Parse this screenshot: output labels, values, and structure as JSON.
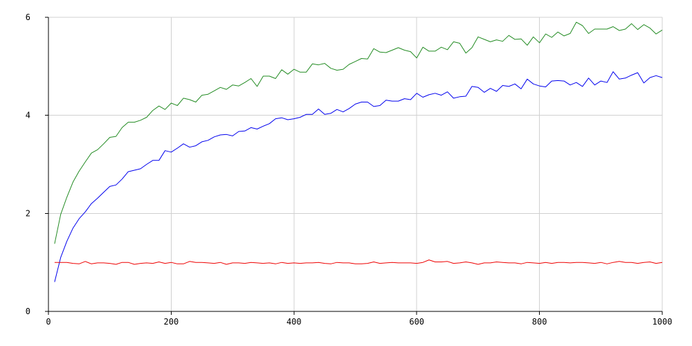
{
  "chart_data": {
    "type": "line",
    "title": "",
    "xlabel": "",
    "ylabel": "",
    "xlim": [
      0,
      1000
    ],
    "ylim": [
      0,
      6
    ],
    "x_ticks": [
      0,
      200,
      400,
      600,
      800,
      1000
    ],
    "y_ticks": [
      0,
      2,
      4,
      6
    ],
    "grid": true,
    "legend": "none",
    "x": [
      10,
      20,
      30,
      40,
      50,
      60,
      70,
      80,
      90,
      100,
      110,
      120,
      130,
      140,
      150,
      160,
      170,
      180,
      190,
      200,
      210,
      220,
      230,
      240,
      250,
      260,
      270,
      280,
      290,
      300,
      310,
      320,
      330,
      340,
      350,
      360,
      370,
      380,
      390,
      400,
      410,
      420,
      430,
      440,
      450,
      460,
      470,
      480,
      490,
      500,
      510,
      520,
      530,
      540,
      550,
      560,
      570,
      580,
      590,
      600,
      610,
      620,
      630,
      640,
      650,
      660,
      670,
      680,
      690,
      700,
      710,
      720,
      730,
      740,
      750,
      760,
      770,
      780,
      790,
      800,
      810,
      820,
      830,
      840,
      850,
      860,
      870,
      880,
      890,
      900,
      910,
      920,
      930,
      940,
      950,
      960,
      970,
      980,
      990,
      1000
    ],
    "series": [
      {
        "color": "#228b22",
        "values": [
          1.38,
          1.98,
          2.33,
          2.64,
          2.86,
          3.05,
          3.23,
          3.3,
          3.42,
          3.55,
          3.57,
          3.75,
          3.86,
          3.86,
          3.9,
          3.96,
          4.1,
          4.19,
          4.12,
          4.25,
          4.2,
          4.35,
          4.32,
          4.27,
          4.41,
          4.43,
          4.5,
          4.57,
          4.53,
          4.62,
          4.6,
          4.67,
          4.75,
          4.59,
          4.8,
          4.8,
          4.75,
          4.93,
          4.84,
          4.94,
          4.88,
          4.88,
          5.05,
          5.03,
          5.06,
          4.96,
          4.92,
          4.94,
          5.04,
          5.1,
          5.16,
          5.15,
          5.36,
          5.29,
          5.28,
          5.33,
          5.38,
          5.33,
          5.3,
          5.17,
          5.39,
          5.31,
          5.31,
          5.39,
          5.34,
          5.5,
          5.47,
          5.27,
          5.38,
          5.6,
          5.55,
          5.5,
          5.54,
          5.51,
          5.63,
          5.55,
          5.56,
          5.43,
          5.6,
          5.48,
          5.66,
          5.59,
          5.7,
          5.62,
          5.67,
          5.9,
          5.83,
          5.67,
          5.76,
          5.76,
          5.76,
          5.81,
          5.73,
          5.76,
          5.87,
          5.75,
          5.85,
          5.78,
          5.66,
          5.74
        ]
      },
      {
        "color": "#0000ee",
        "values": [
          0.6,
          1.1,
          1.43,
          1.7,
          1.89,
          2.03,
          2.2,
          2.31,
          2.43,
          2.55,
          2.58,
          2.7,
          2.85,
          2.88,
          2.91,
          3.0,
          3.08,
          3.08,
          3.28,
          3.25,
          3.33,
          3.42,
          3.35,
          3.38,
          3.46,
          3.49,
          3.56,
          3.6,
          3.61,
          3.58,
          3.67,
          3.68,
          3.75,
          3.72,
          3.78,
          3.83,
          3.93,
          3.95,
          3.91,
          3.93,
          3.96,
          4.02,
          4.02,
          4.13,
          4.02,
          4.04,
          4.12,
          4.07,
          4.14,
          4.23,
          4.27,
          4.27,
          4.18,
          4.2,
          4.31,
          4.29,
          4.29,
          4.34,
          4.32,
          4.45,
          4.37,
          4.42,
          4.45,
          4.41,
          4.48,
          4.35,
          4.38,
          4.39,
          4.59,
          4.57,
          4.47,
          4.55,
          4.49,
          4.61,
          4.59,
          4.64,
          4.54,
          4.74,
          4.64,
          4.6,
          4.58,
          4.7,
          4.71,
          4.7,
          4.62,
          4.67,
          4.59,
          4.76,
          4.62,
          4.7,
          4.67,
          4.89,
          4.74,
          4.76,
          4.82,
          4.87,
          4.66,
          4.77,
          4.81,
          4.77
        ]
      },
      {
        "color": "#ee0000",
        "values": [
          1.0,
          1.0,
          1.0,
          0.98,
          0.97,
          1.02,
          0.97,
          0.99,
          0.99,
          0.98,
          0.96,
          1.0,
          1.0,
          0.96,
          0.98,
          0.99,
          0.98,
          1.01,
          0.98,
          1.0,
          0.97,
          0.97,
          1.02,
          1.0,
          1.0,
          0.99,
          0.98,
          1.0,
          0.96,
          0.99,
          0.99,
          0.98,
          1.0,
          0.99,
          0.98,
          0.99,
          0.97,
          1.0,
          0.98,
          0.99,
          0.98,
          0.99,
          0.99,
          1.0,
          0.98,
          0.97,
          1.0,
          0.99,
          0.99,
          0.97,
          0.97,
          0.98,
          1.01,
          0.98,
          0.99,
          1.0,
          0.99,
          0.99,
          0.99,
          0.98,
          1.0,
          1.05,
          1.01,
          1.01,
          1.02,
          0.98,
          0.99,
          1.01,
          0.99,
          0.96,
          0.99,
          0.99,
          1.01,
          1.0,
          0.99,
          0.99,
          0.97,
          1.0,
          0.99,
          0.98,
          1.0,
          0.98,
          1.0,
          1.0,
          0.99,
          1.0,
          1.0,
          0.99,
          0.98,
          1.0,
          0.97,
          1.0,
          1.02,
          1.0,
          1.0,
          0.98,
          1.0,
          1.01,
          0.98,
          1.0
        ]
      }
    ]
  }
}
